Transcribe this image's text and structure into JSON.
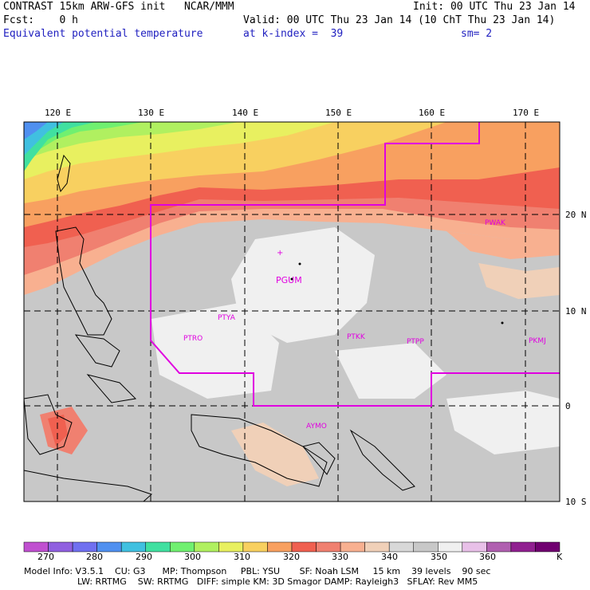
{
  "header": {
    "line1_left": "CONTRAST 15km ARW-GFS init   NCAR/MMM",
    "line1_right": "Init: 00 UTC Thu 23 Jan 14",
    "line2_left": "Fcst:    0 h",
    "line2_right": "Valid: 00 UTC Thu 23 Jan 14 (10 ChT Thu 23 Jan 14)",
    "line3_left": "Equivalent potential temperature",
    "line3_mid": "at k-index =  39",
    "line3_right": "sm= 2"
  },
  "map": {
    "lon_labels": [
      "120 E",
      "130 E",
      "140 E",
      "150 E",
      "160 E",
      "170 E"
    ],
    "lat_labels": [
      "20 N",
      "10 N",
      "0",
      "10 S"
    ],
    "stations": [
      "PWAK",
      "PGUM",
      "PTYA",
      "PTRO",
      "PTKK",
      "PTPP",
      "PKMJ",
      "AYMO"
    ],
    "region_line_color": "#e000e0"
  },
  "colorbar": {
    "labels": [
      "270",
      "280",
      "290",
      "300",
      "310",
      "320",
      "330",
      "340",
      "350",
      "360",
      "K"
    ],
    "colors": [
      "#c050d0",
      "#9060e0",
      "#7070f0",
      "#5090f0",
      "#40c0e0",
      "#40e0a0",
      "#70f070",
      "#b0f060",
      "#e8f060",
      "#f8d060",
      "#f8a060",
      "#f06050",
      "#f08070",
      "#f8b090",
      "#f0d0b8",
      "#d8d8d8",
      "#c8c8c8",
      "#f0f0f0",
      "#e8c0e8",
      "#b060b0",
      "#902090",
      "#700070"
    ]
  },
  "model_info": {
    "line1": "Model Info: V3.5.1    CU: G3      MP: Thompson     PBL: YSU       SF: Noah LSM     15 km    39 levels    90 sec",
    "line2": "LW: RRTMG    SW: RRTMG   DIFF: simple KM: 3D Smagor DAMP: Rayleigh3   SFLAY: Rev MM5"
  }
}
